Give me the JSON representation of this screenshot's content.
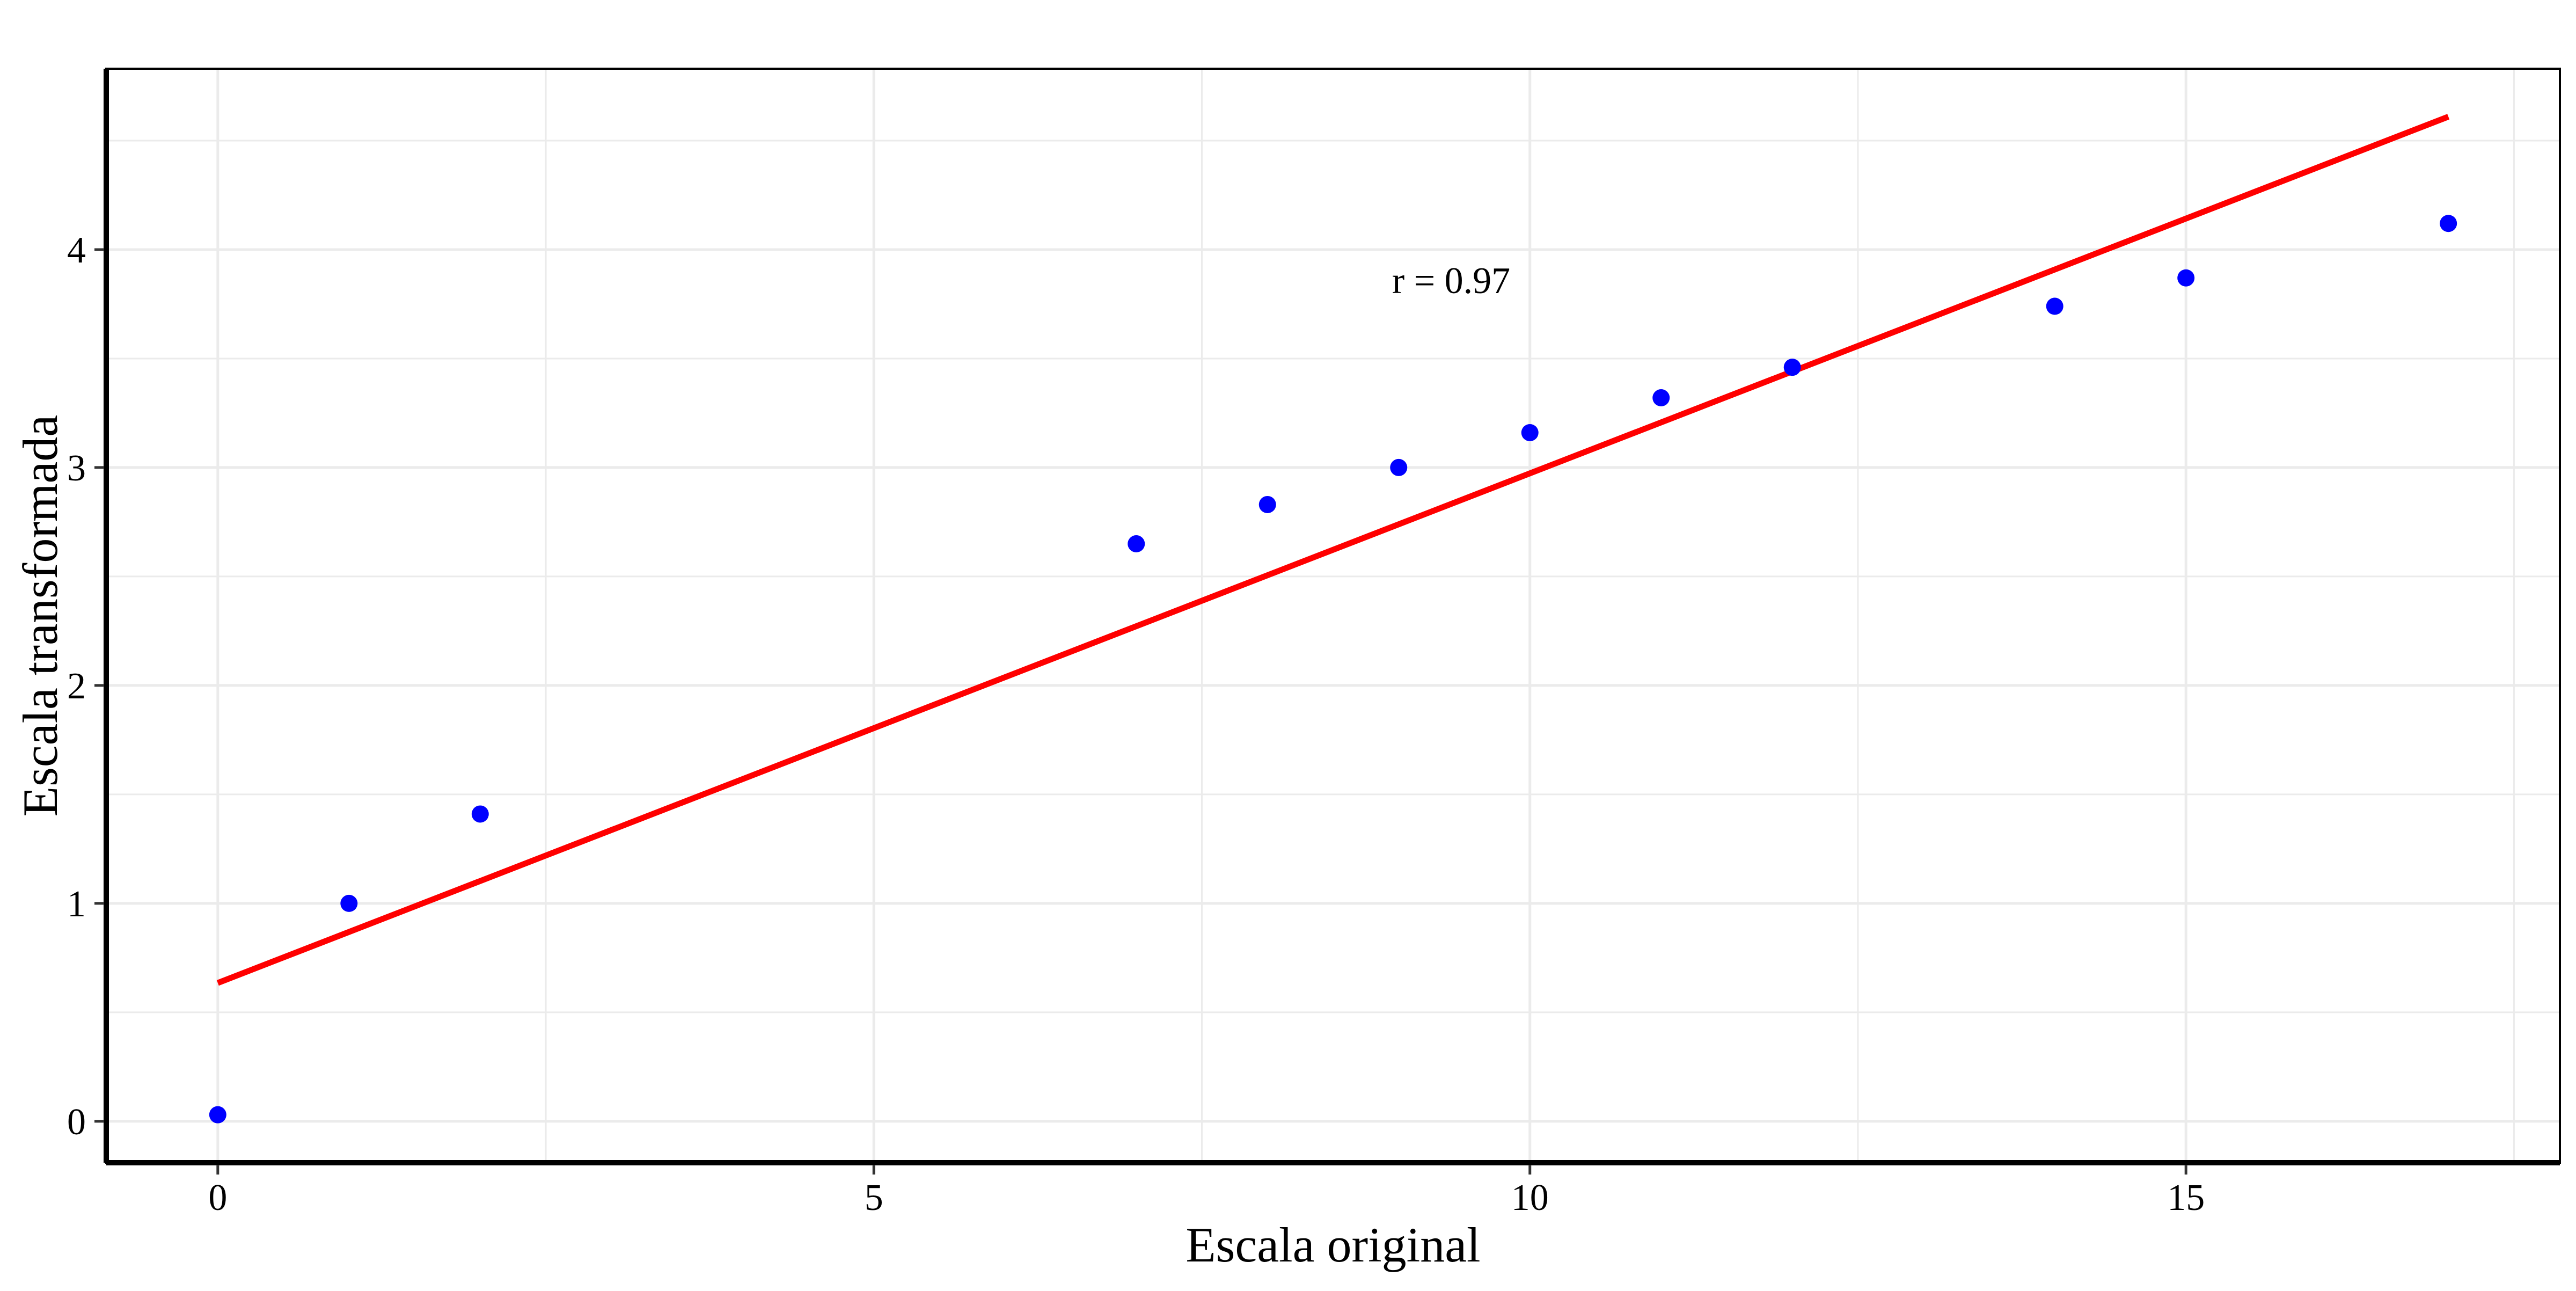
{
  "chart_data": {
    "type": "scatter",
    "title": "",
    "xlabel": "Escala original",
    "ylabel": "Escala transformada",
    "xlim": [
      -0.85,
      17.85
    ],
    "ylim": [
      -0.19,
      4.83
    ],
    "x_ticks": [
      0,
      5,
      10,
      15
    ],
    "y_ticks": [
      0,
      1,
      2,
      3,
      4
    ],
    "grid": true,
    "annotation": "r = 0.97",
    "annotation_position": {
      "x": 9.4,
      "y": 3.86
    },
    "series": [
      {
        "type": "scatter",
        "color": "#0000ff",
        "points": [
          {
            "x": 0,
            "y": 0.03
          },
          {
            "x": 1,
            "y": 1.0
          },
          {
            "x": 2,
            "y": 1.41
          },
          {
            "x": 7,
            "y": 2.65
          },
          {
            "x": 8,
            "y": 2.83
          },
          {
            "x": 9,
            "y": 3.0
          },
          {
            "x": 10,
            "y": 3.16
          },
          {
            "x": 11,
            "y": 3.32
          },
          {
            "x": 12,
            "y": 3.46
          },
          {
            "x": 14,
            "y": 3.74
          },
          {
            "x": 15,
            "y": 3.87
          },
          {
            "x": 17,
            "y": 4.12
          }
        ]
      },
      {
        "type": "line",
        "color": "#ff0000",
        "points": [
          {
            "x": 0,
            "y": 0.635
          },
          {
            "x": 17,
            "y": 4.61
          }
        ]
      }
    ]
  }
}
